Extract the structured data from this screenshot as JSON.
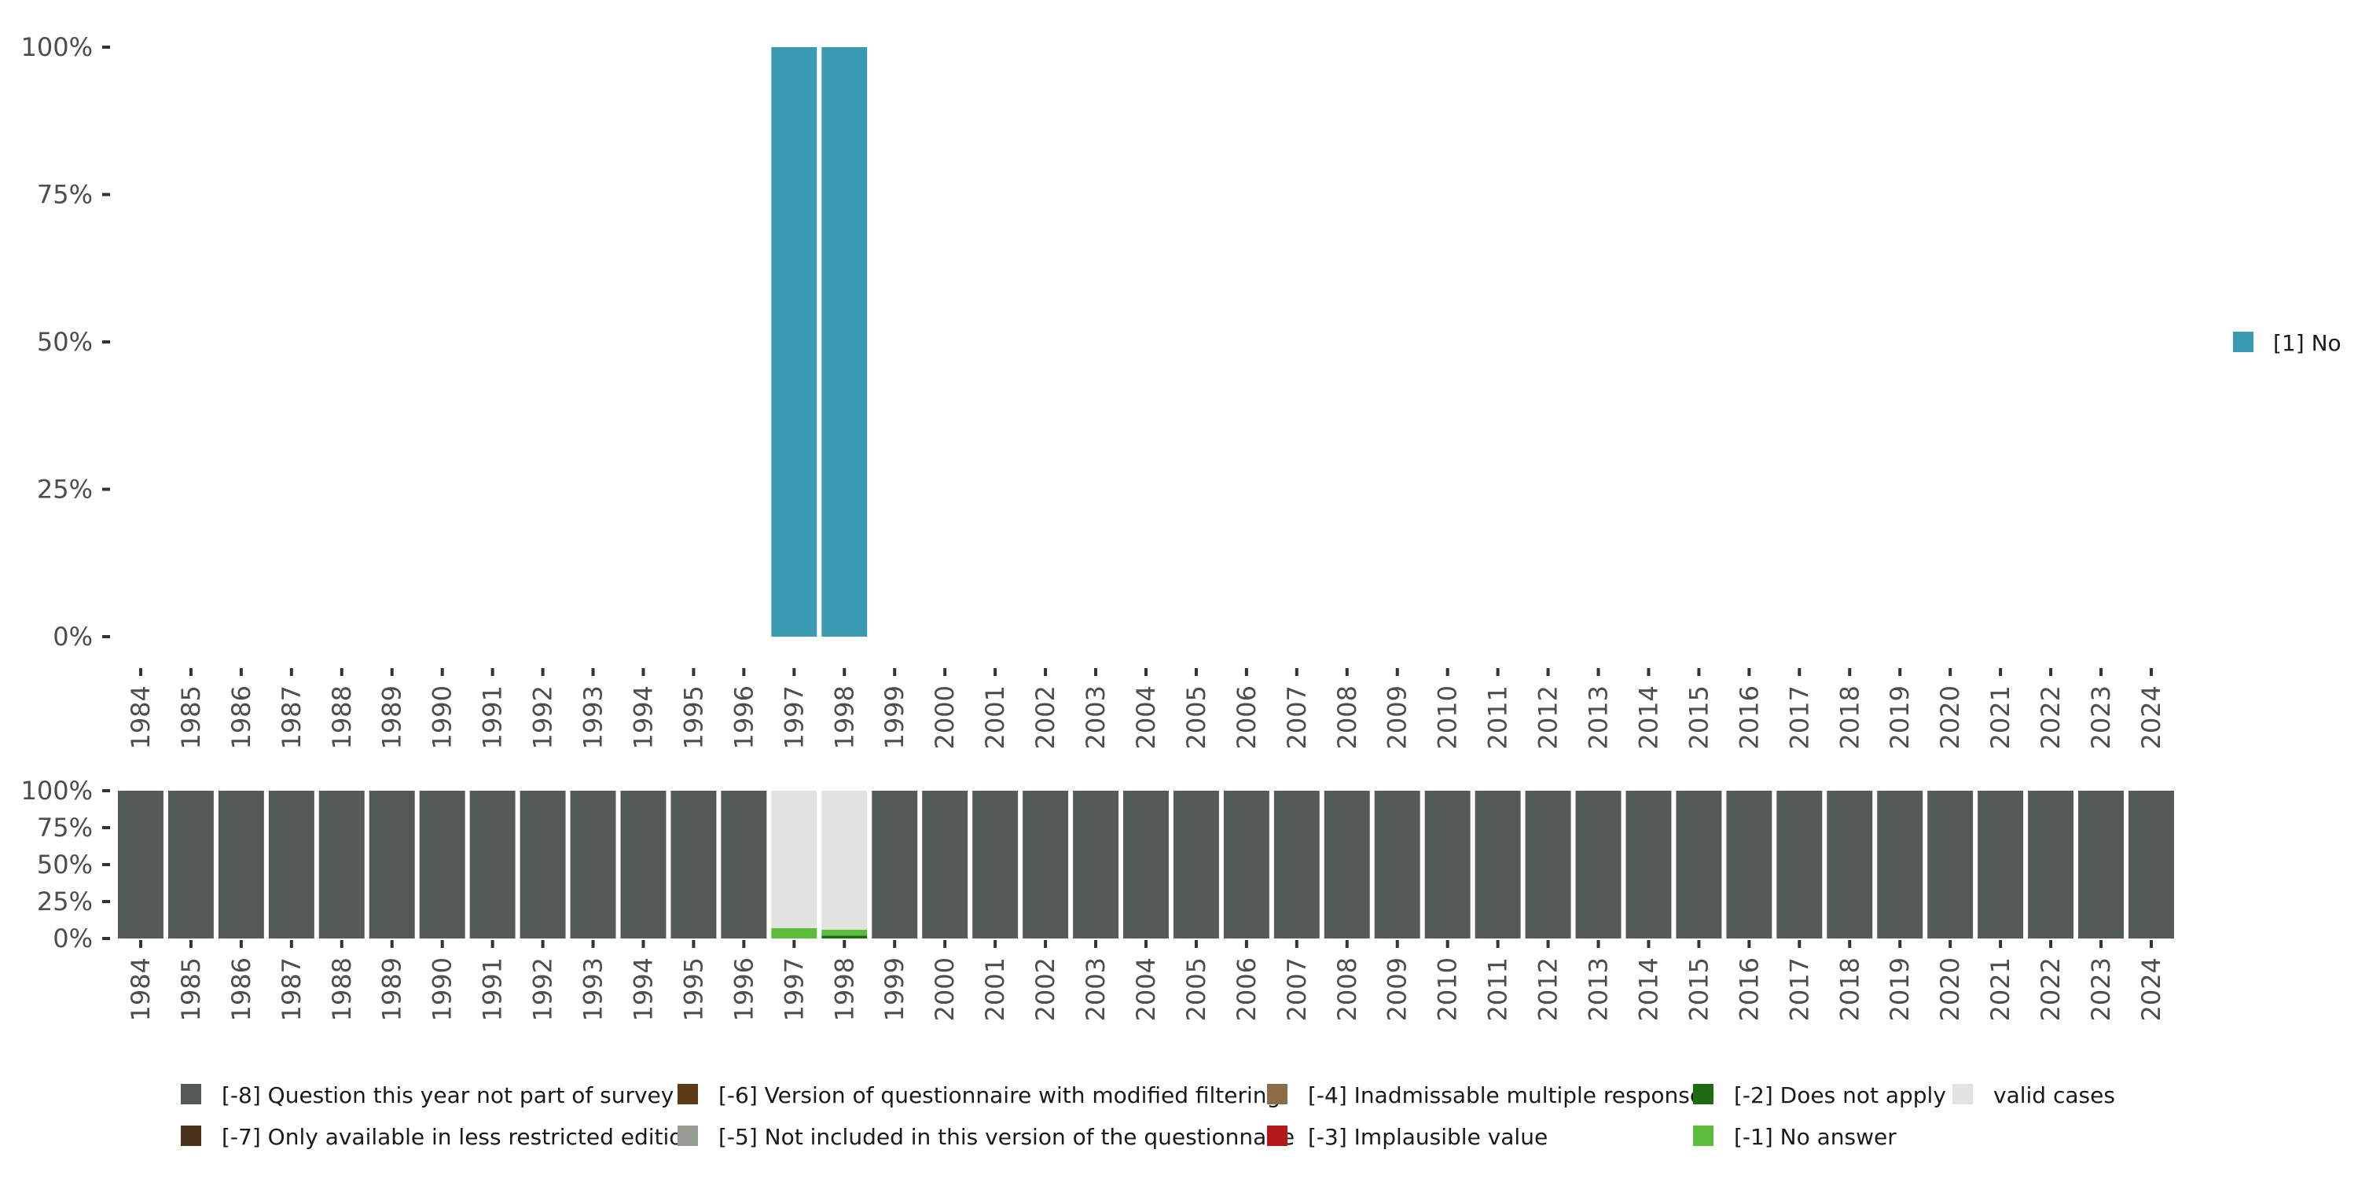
{
  "chart_data": [
    {
      "type": "bar",
      "stacked": true,
      "title": "",
      "xlabel": "",
      "ylabel": "",
      "categories": [
        "1984",
        "1985",
        "1986",
        "1987",
        "1988",
        "1989",
        "1990",
        "1991",
        "1992",
        "1993",
        "1994",
        "1995",
        "1996",
        "1997",
        "1998",
        "1999",
        "2000",
        "2001",
        "2002",
        "2003",
        "2004",
        "2005",
        "2006",
        "2007",
        "2008",
        "2009",
        "2010",
        "2011",
        "2012",
        "2013",
        "2014",
        "2015",
        "2016",
        "2017",
        "2018",
        "2019",
        "2020",
        "2021",
        "2022",
        "2023",
        "2024"
      ],
      "y_ticks": [
        "0%",
        "25%",
        "50%",
        "75%",
        "100%"
      ],
      "ylim": [
        0,
        100
      ],
      "legend_position": "right",
      "series": [
        {
          "name": "[1] No",
          "color": "#3a9ab2",
          "values": [
            0,
            0,
            0,
            0,
            0,
            0,
            0,
            0,
            0,
            0,
            0,
            0,
            0,
            100,
            100,
            0,
            0,
            0,
            0,
            0,
            0,
            0,
            0,
            0,
            0,
            0,
            0,
            0,
            0,
            0,
            0,
            0,
            0,
            0,
            0,
            0,
            0,
            0,
            0,
            0,
            0
          ]
        }
      ]
    },
    {
      "type": "bar",
      "stacked": true,
      "title": "",
      "xlabel": "",
      "ylabel": "",
      "categories": [
        "1984",
        "1985",
        "1986",
        "1987",
        "1988",
        "1989",
        "1990",
        "1991",
        "1992",
        "1993",
        "1994",
        "1995",
        "1996",
        "1997",
        "1998",
        "1999",
        "2000",
        "2001",
        "2002",
        "2003",
        "2004",
        "2005",
        "2006",
        "2007",
        "2008",
        "2009",
        "2010",
        "2011",
        "2012",
        "2013",
        "2014",
        "2015",
        "2016",
        "2017",
        "2018",
        "2019",
        "2020",
        "2021",
        "2022",
        "2023",
        "2024"
      ],
      "y_ticks": [
        "0%",
        "25%",
        "50%",
        "75%",
        "100%"
      ],
      "ylim": [
        0,
        100
      ],
      "legend_position": "bottom",
      "series": [
        {
          "name": "[-8] Question this year not part of survey",
          "color": "#545b57",
          "values": [
            100,
            100,
            100,
            100,
            100,
            100,
            100,
            100,
            100,
            100,
            100,
            100,
            100,
            0,
            0,
            100,
            100,
            100,
            100,
            100,
            100,
            100,
            100,
            100,
            100,
            100,
            100,
            100,
            100,
            100,
            100,
            100,
            100,
            100,
            100,
            100,
            100,
            100,
            100,
            100,
            100
          ]
        },
        {
          "name": "[-7] Only available in less restricted edition",
          "color": "#4b3319",
          "values": [
            0,
            0,
            0,
            0,
            0,
            0,
            0,
            0,
            0,
            0,
            0,
            0,
            0,
            0,
            0,
            0,
            0,
            0,
            0,
            0,
            0,
            0,
            0,
            0,
            0,
            0,
            0,
            0,
            0,
            0,
            0,
            0,
            0,
            0,
            0,
            0,
            0,
            0,
            0,
            0,
            0
          ]
        },
        {
          "name": "[-6] Version of questionnaire with modified filtering",
          "color": "#5c3a14",
          "values": [
            0,
            0,
            0,
            0,
            0,
            0,
            0,
            0,
            0,
            0,
            0,
            0,
            0,
            0,
            0,
            0,
            0,
            0,
            0,
            0,
            0,
            0,
            0,
            0,
            0,
            0,
            0,
            0,
            0,
            0,
            0,
            0,
            0,
            0,
            0,
            0,
            0,
            0,
            0,
            0,
            0
          ]
        },
        {
          "name": "[-5] Not included in this version of the questionnaire",
          "color": "#969c94",
          "values": [
            0,
            0,
            0,
            0,
            0,
            0,
            0,
            0,
            0,
            0,
            0,
            0,
            0,
            0,
            0,
            0,
            0,
            0,
            0,
            0,
            0,
            0,
            0,
            0,
            0,
            0,
            0,
            0,
            0,
            0,
            0,
            0,
            0,
            0,
            0,
            0,
            0,
            0,
            0,
            0,
            0
          ]
        },
        {
          "name": "[-4] Inadmissable multiple response",
          "color": "#8d6b45",
          "values": [
            0,
            0,
            0,
            0,
            0,
            0,
            0,
            0,
            0,
            0,
            0,
            0,
            0,
            0,
            0,
            0,
            0,
            0,
            0,
            0,
            0,
            0,
            0,
            0,
            0,
            0,
            0,
            0,
            0,
            0,
            0,
            0,
            0,
            0,
            0,
            0,
            0,
            0,
            0,
            0,
            0
          ]
        },
        {
          "name": "[-3] Implausible value",
          "color": "#b21a1a",
          "values": [
            0,
            0,
            0,
            0,
            0,
            0,
            0,
            0,
            0,
            0,
            0,
            0,
            0,
            0,
            0,
            0,
            0,
            0,
            0,
            0,
            0,
            0,
            0,
            0,
            0,
            0,
            0,
            0,
            0,
            0,
            0,
            0,
            0,
            0,
            0,
            0,
            0,
            0,
            0,
            0,
            0
          ]
        },
        {
          "name": "[-2] Does not apply",
          "color": "#1f6b12",
          "values": [
            0,
            0,
            0,
            0,
            0,
            0,
            0,
            0,
            0,
            0,
            0,
            0,
            0,
            0,
            2,
            0,
            0,
            0,
            0,
            0,
            0,
            0,
            0,
            0,
            0,
            0,
            0,
            0,
            0,
            0,
            0,
            0,
            0,
            0,
            0,
            0,
            0,
            0,
            0,
            0,
            0
          ]
        },
        {
          "name": "[-1] No answer",
          "color": "#5cbd3c",
          "values": [
            0,
            0,
            0,
            0,
            0,
            0,
            0,
            0,
            0,
            0,
            0,
            0,
            0,
            7,
            4,
            0,
            0,
            0,
            0,
            0,
            0,
            0,
            0,
            0,
            0,
            0,
            0,
            0,
            0,
            0,
            0,
            0,
            0,
            0,
            0,
            0,
            0,
            0,
            0,
            0,
            0
          ]
        },
        {
          "name": "valid cases",
          "color": "#e0e3de",
          "values": [
            0,
            0,
            0,
            0,
            0,
            0,
            0,
            0,
            0,
            0,
            0,
            0,
            0,
            93,
            94,
            0,
            0,
            0,
            0,
            0,
            0,
            0,
            0,
            0,
            0,
            0,
            0,
            0,
            0,
            0,
            0,
            0,
            0,
            0,
            0,
            0,
            0,
            0,
            0,
            0,
            0
          ]
        }
      ]
    }
  ]
}
